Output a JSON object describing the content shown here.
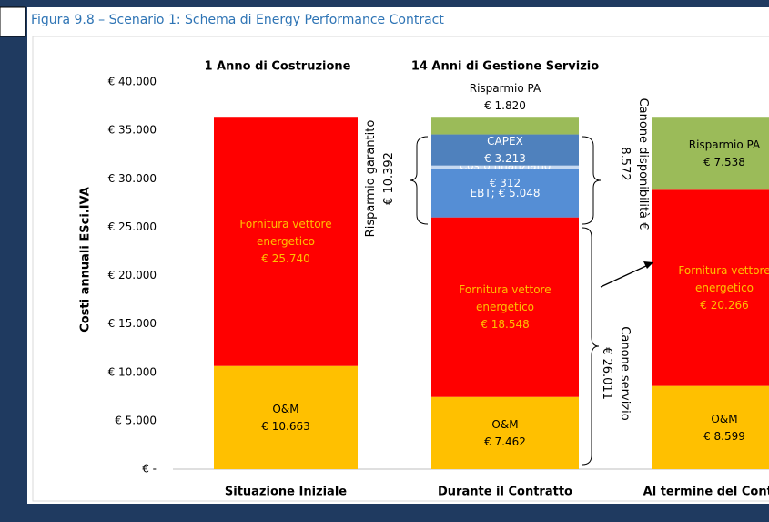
{
  "caption": "Figura 9.8 – Scenario 1: Schema di Energy Performance Contract",
  "chart_data": {
    "type": "stacked_bar",
    "y_label": "Costi annuali ESci.IVA",
    "group_headers": [
      "1 Anno di Costruzione",
      "14 Anni di Gestione Servizio"
    ],
    "categories": [
      "Situazione Iniziale",
      "Durante il Contratto",
      "Al termine del Contratto"
    ],
    "series": [
      {
        "name": "O&M",
        "color": "#ffc000",
        "values": [
          10663,
          7462,
          8599
        ],
        "value_labels": [
          "€ 10.663",
          "€ 7.462",
          "€ 8.599"
        ]
      },
      {
        "name": "Fornitura vettore energetico",
        "color": "#ff0000",
        "values": [
          25740,
          18548,
          20266
        ],
        "value_labels": [
          "€ 25.740",
          "€ 18.548",
          "€ 20.266"
        ]
      },
      {
        "name": "EBT;",
        "color": "#558ed5",
        "values": [
          null,
          5048,
          null
        ],
        "value_labels": [
          null,
          "€ 5.048",
          null
        ]
      },
      {
        "name": "Costo finanziario",
        "color": "#c6d9f1",
        "values": [
          null,
          312,
          null
        ],
        "value_labels": [
          null,
          "€ 312",
          null
        ]
      },
      {
        "name": "CAPEX",
        "color": "#4f81bd",
        "values": [
          null,
          3213,
          null
        ],
        "value_labels": [
          null,
          "€ 3.213",
          null
        ]
      },
      {
        "name": "Risparmio PA",
        "color": "#9bbb59",
        "values": [
          null,
          1820,
          7538
        ],
        "value_labels": [
          null,
          "€ 1.820",
          "€ 7.538"
        ]
      }
    ],
    "ylim": [
      0,
      40000
    ],
    "yticks": [
      {
        "value": 0,
        "label": "€ -"
      },
      {
        "value": 5000,
        "label": "€ 5.000"
      },
      {
        "value": 10000,
        "label": "€ 10.000"
      },
      {
        "value": 15000,
        "label": "€ 15.000"
      },
      {
        "value": 20000,
        "label": "€ 20.000"
      },
      {
        "value": 25000,
        "label": "€ 25.000"
      },
      {
        "value": 30000,
        "label": "€ 30.000"
      },
      {
        "value": 35000,
        "label": "€ 35.000"
      },
      {
        "value": 40000,
        "label": "€ 40.000"
      }
    ],
    "annotations": [
      {
        "lines": [
          "Risparmio garantito",
          "€ 10.392"
        ]
      },
      {
        "lines": [
          "Canone disponibilità €",
          "8.572"
        ]
      },
      {
        "lines": [
          "Canone servizio",
          "€ 26.011"
        ]
      }
    ]
  }
}
